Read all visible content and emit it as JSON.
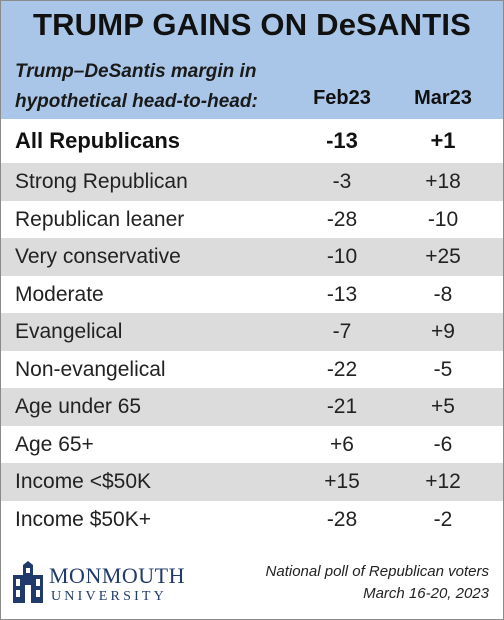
{
  "title": "TRUMP GAINS ON DeSANTIS",
  "subtitle_line1": "Trump–DeSantis margin in",
  "subtitle_line2": "hypothetical head-to-head:",
  "columns": [
    "Feb23",
    "Mar23"
  ],
  "total": {
    "label": "All Republicans",
    "feb": "-13",
    "mar": "+1"
  },
  "rows": [
    {
      "label": "Strong Republican",
      "feb": "-3",
      "mar": "+18"
    },
    {
      "label": "Republican leaner",
      "feb": "-28",
      "mar": "-10"
    },
    {
      "label": "Very conservative",
      "feb": "-10",
      "mar": "+25"
    },
    {
      "label": "Moderate",
      "feb": "-13",
      "mar": "-8"
    },
    {
      "label": "Evangelical",
      "feb": "-7",
      "mar": "+9"
    },
    {
      "label": "Non-evangelical",
      "feb": "-22",
      "mar": "-5"
    },
    {
      "label": "Age under 65",
      "feb": "-21",
      "mar": "+5"
    },
    {
      "label": "Age 65+",
      "feb": "+6",
      "mar": "-6"
    },
    {
      "label": "Income <$50K",
      "feb": "+15",
      "mar": "+12"
    },
    {
      "label": "Income $50K+",
      "feb": "-28",
      "mar": "-2"
    }
  ],
  "logo": {
    "line1": "MONMOUTH",
    "line2": "UNIVERSITY"
  },
  "note_line1": "National poll of Republican voters",
  "note_line2": "March 16-20, 2023",
  "colors": {
    "header_bg": "#a9c6e8",
    "stripe": "#dcdcdc",
    "logo": "#1f3a6b"
  }
}
